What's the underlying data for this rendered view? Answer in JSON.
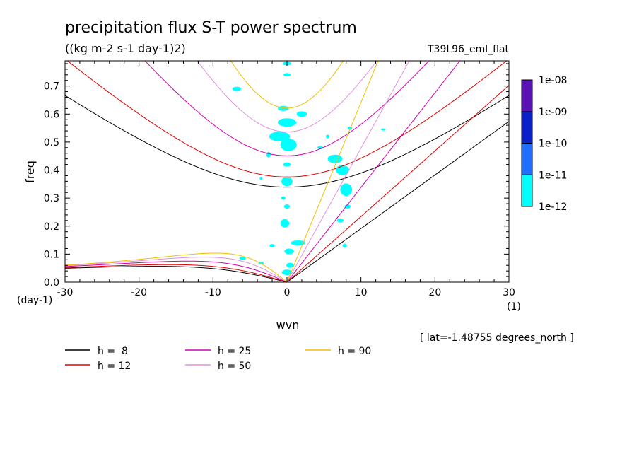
{
  "chart_data": {
    "type": "contour",
    "title": "precipitation flux S-T power spectrum",
    "subtitle": "((kg m-2 s-1 day-1)2)",
    "run_label": "T39L96_eml_flat",
    "xlabel": "wvn",
    "ylabel": "freq",
    "x_unit": "(1)",
    "y_unit": "(day-1)",
    "latitude_note": "[ lat=-1.48755 degrees_north ]",
    "xlim": [
      -30,
      30
    ],
    "ylim": [
      0.0,
      0.79
    ],
    "x_ticks": [
      -30,
      -20,
      -10,
      0,
      10,
      20,
      30
    ],
    "x_tick_labels": [
      "-30",
      "-20",
      "-10",
      "0",
      "10",
      "20",
      "30"
    ],
    "y_ticks": [
      0.0,
      0.1,
      0.2,
      0.3,
      0.4,
      0.5,
      0.6,
      0.7
    ],
    "y_tick_labels": [
      "0.0",
      "0.1",
      "0.2",
      "0.3",
      "0.4",
      "0.5",
      "0.6",
      "0.7"
    ],
    "colorbar": {
      "levels": [
        "1e-12",
        "1e-11",
        "1e-10",
        "1e-09",
        "1e-08"
      ],
      "colors": [
        "#00ffff",
        "#1e6eff",
        "#0a20c8",
        "#5a12b4"
      ]
    },
    "series": [
      {
        "name": "h =  8",
        "h": 8,
        "color": "#000000"
      },
      {
        "name": "h = 12",
        "h": 12,
        "color": "#e00000"
      },
      {
        "name": "h = 25",
        "h": 25,
        "color": "#d000b0"
      },
      {
        "name": "h = 50",
        "h": 50,
        "color": "#e090e0"
      },
      {
        "name": "h = 90",
        "h": 90,
        "color": "#f0c000"
      }
    ],
    "spectral_blobs": [
      {
        "x": 0.0,
        "y": 0.78,
        "w": 1.2,
        "h": 0.012
      },
      {
        "x": -6.8,
        "y": 0.69,
        "w": 1.2,
        "h": 0.015
      },
      {
        "x": 0.0,
        "y": 0.74,
        "w": 1.0,
        "h": 0.012
      },
      {
        "x": -0.5,
        "y": 0.62,
        "w": 1.5,
        "h": 0.018
      },
      {
        "x": 2.0,
        "y": 0.6,
        "w": 1.4,
        "h": 0.02
      },
      {
        "x": 0.0,
        "y": 0.57,
        "w": 2.5,
        "h": 0.03
      },
      {
        "x": -1.0,
        "y": 0.52,
        "w": 2.8,
        "h": 0.035
      },
      {
        "x": 0.2,
        "y": 0.49,
        "w": 2.2,
        "h": 0.045
      },
      {
        "x": -2.5,
        "y": 0.455,
        "w": 0.6,
        "h": 0.02
      },
      {
        "x": 0.0,
        "y": 0.42,
        "w": 1.0,
        "h": 0.015
      },
      {
        "x": 0.0,
        "y": 0.36,
        "w": 1.5,
        "h": 0.035
      },
      {
        "x": -0.5,
        "y": 0.3,
        "w": 0.6,
        "h": 0.012
      },
      {
        "x": 0.0,
        "y": 0.27,
        "w": 0.8,
        "h": 0.015
      },
      {
        "x": -0.3,
        "y": 0.21,
        "w": 1.2,
        "h": 0.03
      },
      {
        "x": -2.0,
        "y": 0.13,
        "w": 0.7,
        "h": 0.012
      },
      {
        "x": -6.0,
        "y": 0.085,
        "w": 0.9,
        "h": 0.01
      },
      {
        "x": -3.5,
        "y": 0.068,
        "w": 0.7,
        "h": 0.01
      },
      {
        "x": 0.3,
        "y": 0.11,
        "w": 1.3,
        "h": 0.02
      },
      {
        "x": 0.4,
        "y": 0.06,
        "w": 1.0,
        "h": 0.018
      },
      {
        "x": 0.0,
        "y": 0.035,
        "w": 1.4,
        "h": 0.02
      },
      {
        "x": 1.5,
        "y": 0.14,
        "w": 2.0,
        "h": 0.018
      },
      {
        "x": 6.5,
        "y": 0.44,
        "w": 2.0,
        "h": 0.03
      },
      {
        "x": 7.5,
        "y": 0.4,
        "w": 1.8,
        "h": 0.035
      },
      {
        "x": 8.0,
        "y": 0.33,
        "w": 1.6,
        "h": 0.045
      },
      {
        "x": 7.2,
        "y": 0.22,
        "w": 0.9,
        "h": 0.015
      },
      {
        "x": 8.2,
        "y": 0.27,
        "w": 0.8,
        "h": 0.015
      },
      {
        "x": 7.8,
        "y": 0.13,
        "w": 0.6,
        "h": 0.015
      },
      {
        "x": 8.5,
        "y": 0.55,
        "w": 0.6,
        "h": 0.012
      },
      {
        "x": 13.0,
        "y": 0.545,
        "w": 0.6,
        "h": 0.006
      },
      {
        "x": 4.5,
        "y": 0.48,
        "w": 0.8,
        "h": 0.012
      },
      {
        "x": 5.5,
        "y": 0.52,
        "w": 0.5,
        "h": 0.012
      },
      {
        "x": -3.5,
        "y": 0.37,
        "w": 0.4,
        "h": 0.01
      }
    ]
  }
}
